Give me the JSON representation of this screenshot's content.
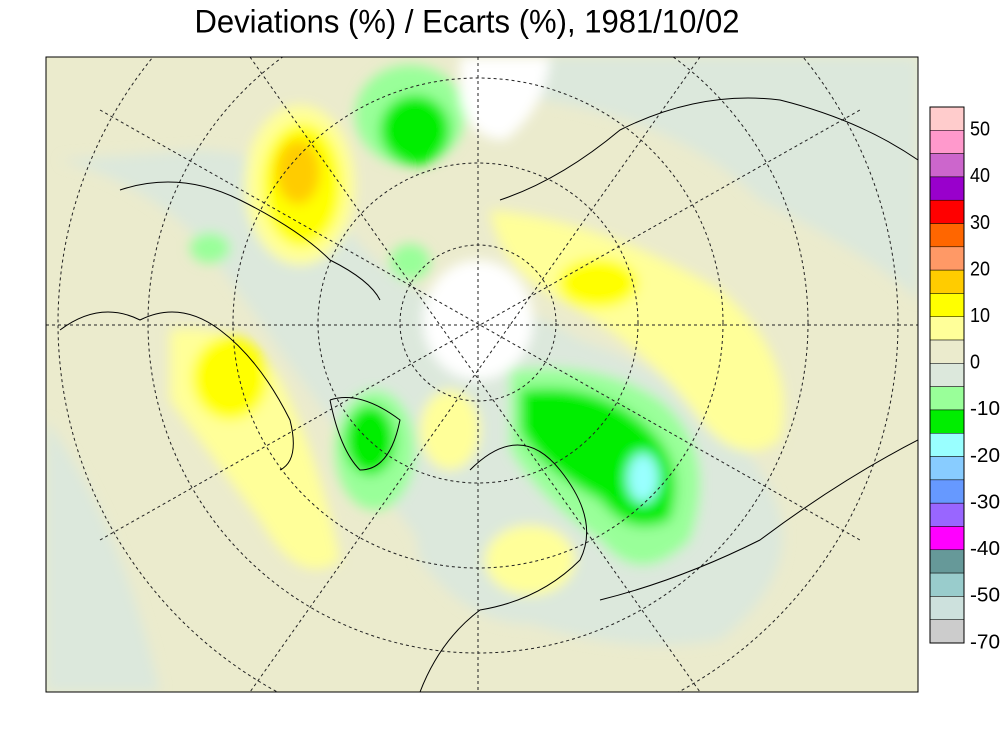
{
  "title": "Deviations (%) / Ecarts (%), 1981/10/02",
  "legend": {
    "levels": [
      50,
      40,
      30,
      20,
      10,
      0,
      -10,
      -20,
      -30,
      -40,
      -50,
      -70
    ],
    "colors": [
      "#ffcccc",
      "#ff99cc",
      "#cc66cc",
      "#9900cc",
      "#ff0000",
      "#ff6600",
      "#ff9966",
      "#ffcc00",
      "#ffff00",
      "#ffff99",
      "#ebebcd",
      "#dce8dc",
      "#99ff99",
      "#00ee00",
      "#99ffff",
      "#88ccff",
      "#6699ff",
      "#9966ff",
      "#ff00ff",
      "#669999",
      "#99cccc",
      "#cde1dd",
      "#cccccc"
    ]
  }
}
